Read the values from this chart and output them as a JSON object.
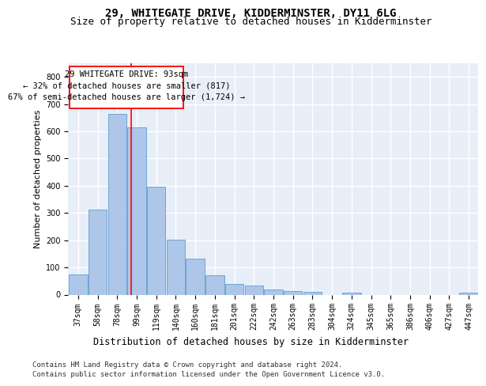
{
  "title": "29, WHITEGATE DRIVE, KIDDERMINSTER, DY11 6LG",
  "subtitle": "Size of property relative to detached houses in Kidderminster",
  "xlabel": "Distribution of detached houses by size in Kidderminster",
  "ylabel": "Number of detached properties",
  "categories": [
    "37sqm",
    "58sqm",
    "78sqm",
    "99sqm",
    "119sqm",
    "140sqm",
    "160sqm",
    "181sqm",
    "201sqm",
    "222sqm",
    "242sqm",
    "263sqm",
    "283sqm",
    "304sqm",
    "324sqm",
    "345sqm",
    "365sqm",
    "386sqm",
    "406sqm",
    "427sqm",
    "447sqm"
  ],
  "values": [
    75,
    312,
    665,
    615,
    397,
    203,
    133,
    70,
    40,
    33,
    20,
    14,
    10,
    0,
    7,
    0,
    0,
    0,
    0,
    0,
    7
  ],
  "bar_color": "#aec6e8",
  "bar_edge_color": "#5a9fd4",
  "bg_color": "#e8eef7",
  "grid_color": "#ffffff",
  "annotation_line1": "29 WHITEGATE DRIVE: 93sqm",
  "annotation_line2": "← 32% of detached houses are smaller (817)",
  "annotation_line3": "67% of semi-detached houses are larger (1,724) →",
  "ylim": [
    0,
    850
  ],
  "yticks": [
    0,
    100,
    200,
    300,
    400,
    500,
    600,
    700,
    800
  ],
  "footer_line1": "Contains HM Land Registry data © Crown copyright and database right 2024.",
  "footer_line2": "Contains public sector information licensed under the Open Government Licence v3.0.",
  "title_fontsize": 10,
  "subtitle_fontsize": 9,
  "xlabel_fontsize": 8.5,
  "ylabel_fontsize": 8,
  "tick_fontsize": 7,
  "annotation_fontsize": 7.5,
  "footer_fontsize": 6.5
}
